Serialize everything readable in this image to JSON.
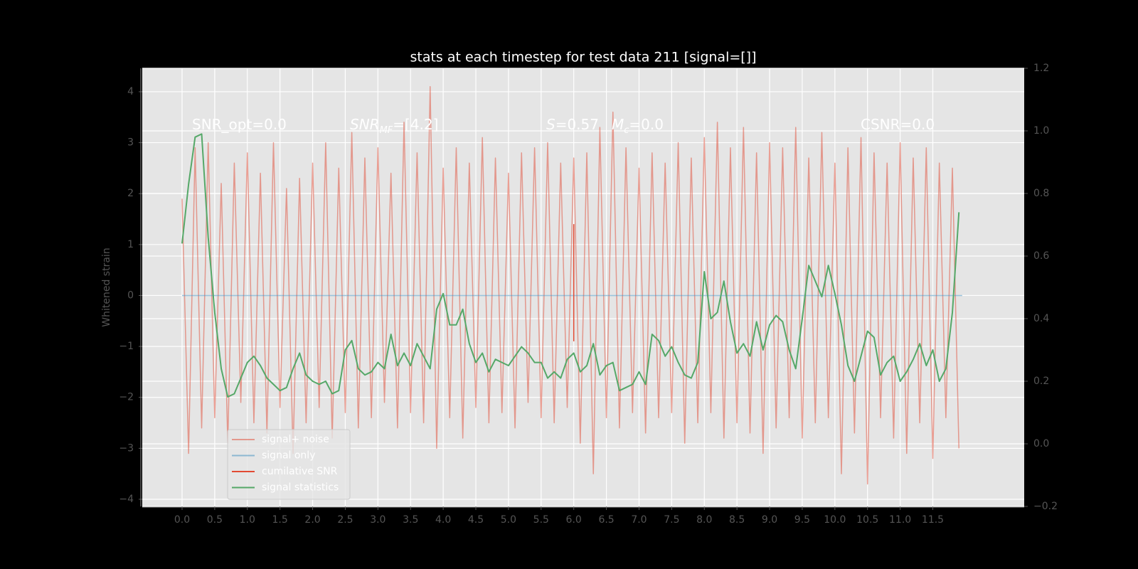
{
  "chart_data": {
    "type": "line",
    "title": "stats at each timestep for test data 211 [signal=[]]",
    "ylabel": "Whitened strain",
    "xlim": [
      -0.61,
      12.9
    ],
    "ylim": [
      -4.14,
      4.46
    ],
    "y2lim": [
      -0.2,
      1.2
    ],
    "xticks": [
      {
        "value": 0,
        "label": "0.0"
      },
      0.5,
      {
        "value": 1,
        "label": "1.0"
      },
      1.5,
      {
        "value": 2,
        "label": "2.0"
      },
      2.5,
      {
        "value": 3,
        "label": "3.0"
      },
      3.5,
      {
        "value": 4,
        "label": "4.0"
      },
      4.5,
      {
        "value": 5,
        "label": "5.0"
      },
      5.5,
      {
        "value": 6,
        "label": "6.0"
      },
      6.5,
      {
        "value": 7,
        "label": "7.0"
      },
      7.5,
      {
        "value": 8,
        "label": "8.0"
      },
      8.5,
      {
        "value": 9,
        "label": "9.0"
      },
      9.5,
      {
        "value": 10,
        "label": "10.0"
      },
      10.5,
      {
        "value": 11,
        "label": "11.0"
      },
      11.5
    ],
    "yticks": [
      {
        "value": -4,
        "label": "−4"
      },
      {
        "value": -3,
        "label": "−3"
      },
      {
        "value": -2,
        "label": "−2"
      },
      {
        "value": -1,
        "label": "−1"
      },
      0,
      1,
      2,
      3,
      4
    ],
    "y2ticks": [
      {
        "value": -0.2,
        "label": "−0.2"
      },
      {
        "value": 0,
        "label": "0.0"
      },
      0.2,
      0.4,
      0.6,
      0.8,
      {
        "value": 1,
        "label": "1.0"
      },
      1.2
    ],
    "grid": true,
    "legend": "lower left",
    "annotations": [
      {
        "parts": [
          {
            "text": "SNR_opt=0.0"
          }
        ]
      },
      {
        "parts": [
          {
            "text": "SNR",
            "style": "italic"
          },
          {
            "text": "MF",
            "style": "italic-sub"
          },
          {
            "text": "=[4.2]"
          }
        ]
      },
      {
        "parts": [
          {
            "text": "S",
            "style": "italic"
          },
          {
            "text": "=0.57"
          }
        ]
      },
      {
        "parts": [
          {
            "text": "M",
            "style": "italic"
          },
          {
            "text": "c",
            "style": "italic-sub"
          },
          {
            "text": "=0.0"
          }
        ]
      },
      {
        "parts": [
          {
            "text": "CSNR=0.0"
          }
        ]
      }
    ],
    "series": [
      {
        "name": "signal+ noise",
        "color": "#e24a33",
        "alpha": 0.5,
        "x": [
          0,
          0.1,
          0.2,
          0.3,
          0.4,
          0.5,
          0.6,
          0.7,
          0.8,
          0.9,
          1,
          1.1,
          1.2,
          1.3,
          1.4,
          1.5,
          1.6,
          1.7,
          1.8,
          1.9,
          2,
          2.1,
          2.2,
          2.3,
          2.4,
          2.5,
          2.6,
          2.7,
          2.8,
          2.9,
          3,
          3.1,
          3.2,
          3.3,
          3.4,
          3.5,
          3.6,
          3.7,
          3.8,
          3.9,
          4,
          4.1,
          4.2,
          4.3,
          4.4,
          4.5,
          4.6,
          4.7,
          4.8,
          4.9,
          5,
          5.1,
          5.2,
          5.3,
          5.4,
          5.5,
          5.6,
          5.7,
          5.8,
          5.9,
          6,
          6.1,
          6.2,
          6.3,
          6.4,
          6.5,
          6.6,
          6.7,
          6.8,
          6.9,
          7,
          7.1,
          7.2,
          7.3,
          7.4,
          7.5,
          7.6,
          7.7,
          7.8,
          7.9,
          8,
          8.1,
          8.2,
          8.3,
          8.4,
          8.5,
          8.6,
          8.7,
          8.8,
          8.9,
          9,
          9.1,
          9.2,
          9.3,
          9.4,
          9.5,
          9.6,
          9.7,
          9.8,
          9.9,
          10,
          10.1,
          10.2,
          10.3,
          10.4,
          10.5,
          10.6,
          10.7,
          10.8,
          10.9,
          11,
          11.1,
          11.2,
          11.3,
          11.4,
          11.5,
          11.6,
          11.7,
          11.8,
          11.9
        ],
        "values": [
          1.9,
          -3.1,
          2.9,
          -2.6,
          3.0,
          -2.4,
          2.2,
          -2.9,
          2.6,
          -2.1,
          2.8,
          -2.5,
          2.4,
          -2.7,
          3.0,
          -2.2,
          2.1,
          -3.1,
          2.3,
          -2.5,
          2.6,
          -2.2,
          3.0,
          -2.8,
          2.5,
          -2.3,
          3.2,
          -2.6,
          2.7,
          -2.4,
          2.9,
          -2.1,
          2.4,
          -2.6,
          3.4,
          -2.3,
          2.8,
          -2.5,
          4.1,
          -3.0,
          2.5,
          -2.4,
          2.9,
          -2.8,
          2.6,
          -2.2,
          3.1,
          -2.5,
          2.7,
          -2.3,
          2.4,
          -2.6,
          2.8,
          -2.1,
          2.9,
          -2.4,
          3.0,
          -2.5,
          2.6,
          -2.2,
          2.7,
          -2.9,
          2.8,
          -3.5,
          3.3,
          -2.4,
          3.6,
          -2.6,
          2.9,
          -2.3,
          2.5,
          -2.7,
          2.8,
          -2.4,
          2.6,
          -2.3,
          3.0,
          -2.9,
          2.7,
          -2.5,
          3.1,
          -2.3,
          3.4,
          -2.8,
          2.9,
          -2.5,
          3.3,
          -2.7,
          2.8,
          -3.1,
          3.0,
          -2.6,
          2.9,
          -2.4,
          3.3,
          -2.8,
          2.7,
          -2.5,
          3.2,
          -2.4,
          2.6,
          -3.5,
          2.9,
          -2.7,
          3.1,
          -3.7,
          2.8,
          -2.4,
          2.6,
          -2.8,
          3.0,
          -3.1,
          2.7,
          -2.5,
          2.9,
          -3.2,
          2.6,
          -2.4,
          2.5,
          -3.0
        ]
      },
      {
        "name": "signal only",
        "color": "#348abd",
        "alpha": 0.5,
        "x": [
          0,
          11.95
        ],
        "values": [
          0,
          0
        ]
      },
      {
        "name": "cumilative SNR",
        "color": "#e24a33",
        "alpha": 1,
        "x": [
          6,
          6
        ],
        "values": [
          1.4,
          -0.9
        ]
      },
      {
        "name": "signal statistics",
        "color": "#55a868",
        "alpha": 1,
        "axis": "y2",
        "x": [
          0,
          0.1,
          0.2,
          0.3,
          0.4,
          0.5,
          0.6,
          0.7,
          0.8,
          0.9,
          1,
          1.1,
          1.2,
          1.3,
          1.4,
          1.5,
          1.6,
          1.7,
          1.8,
          1.9,
          2,
          2.1,
          2.2,
          2.3,
          2.4,
          2.5,
          2.6,
          2.7,
          2.8,
          2.9,
          3,
          3.1,
          3.2,
          3.3,
          3.4,
          3.5,
          3.6,
          3.7,
          3.8,
          3.9,
          4,
          4.1,
          4.2,
          4.3,
          4.4,
          4.5,
          4.6,
          4.7,
          4.8,
          4.9,
          5,
          5.1,
          5.2,
          5.3,
          5.4,
          5.5,
          5.6,
          5.7,
          5.8,
          5.9,
          6,
          6.1,
          6.2,
          6.3,
          6.4,
          6.5,
          6.6,
          6.7,
          6.8,
          6.9,
          7,
          7.1,
          7.2,
          7.3,
          7.4,
          7.5,
          7.6,
          7.7,
          7.8,
          7.9,
          8,
          8.1,
          8.2,
          8.3,
          8.4,
          8.5,
          8.6,
          8.7,
          8.8,
          8.9,
          9,
          9.1,
          9.2,
          9.3,
          9.4,
          9.5,
          9.6,
          9.7,
          9.8,
          9.9,
          10,
          10.1,
          10.2,
          10.3,
          10.4,
          10.5,
          10.6,
          10.7,
          10.8,
          10.9,
          11,
          11.1,
          11.2,
          11.3,
          11.4,
          11.5,
          11.6,
          11.7,
          11.8,
          11.9
        ],
        "values": [
          0.64,
          0.83,
          0.98,
          0.99,
          0.66,
          0.42,
          0.24,
          0.15,
          0.16,
          0.21,
          0.26,
          0.28,
          0.25,
          0.21,
          0.19,
          0.17,
          0.18,
          0.24,
          0.29,
          0.22,
          0.2,
          0.19,
          0.2,
          0.16,
          0.17,
          0.3,
          0.33,
          0.24,
          0.22,
          0.23,
          0.26,
          0.24,
          0.35,
          0.25,
          0.29,
          0.25,
          0.32,
          0.28,
          0.24,
          0.43,
          0.48,
          0.38,
          0.38,
          0.43,
          0.32,
          0.26,
          0.29,
          0.23,
          0.27,
          0.26,
          0.25,
          0.28,
          0.31,
          0.29,
          0.26,
          0.26,
          0.21,
          0.23,
          0.21,
          0.27,
          0.29,
          0.23,
          0.25,
          0.32,
          0.22,
          0.25,
          0.26,
          0.17,
          0.18,
          0.19,
          0.23,
          0.19,
          0.35,
          0.33,
          0.28,
          0.31,
          0.26,
          0.22,
          0.21,
          0.26,
          0.55,
          0.4,
          0.42,
          0.52,
          0.39,
          0.29,
          0.32,
          0.28,
          0.39,
          0.3,
          0.38,
          0.41,
          0.39,
          0.3,
          0.24,
          0.4,
          0.57,
          0.52,
          0.47,
          0.57,
          0.48,
          0.38,
          0.25,
          0.2,
          0.28,
          0.36,
          0.34,
          0.22,
          0.26,
          0.28,
          0.2,
          0.23,
          0.27,
          0.32,
          0.25,
          0.3,
          0.2,
          0.24,
          0.42,
          0.74
        ]
      }
    ]
  }
}
